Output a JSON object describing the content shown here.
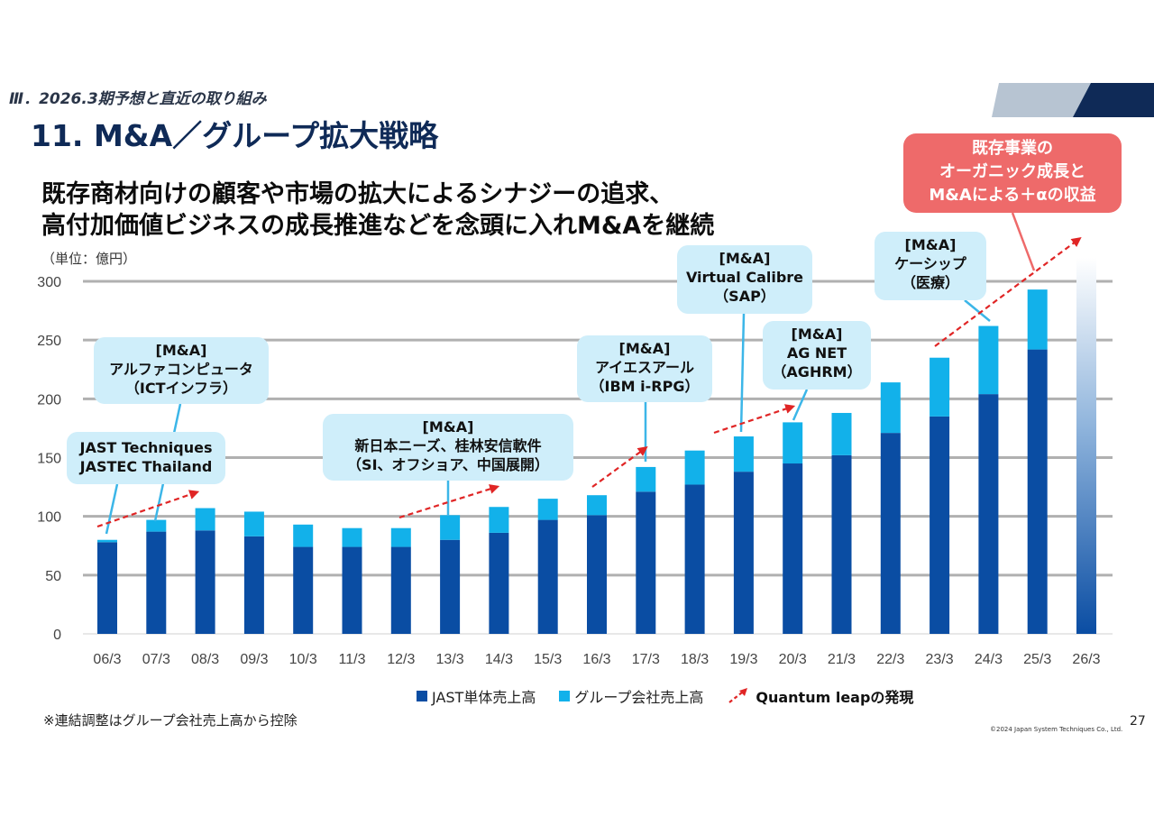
{
  "header": {
    "section": "Ⅲ．2026.3期予想と直近の取り組み",
    "title": "11. M&A／グループ拡大戦略",
    "headline_1": "既存商材向けの顧客や市場の拡大によるシナジーの追求、",
    "headline_2": "高付加価値ビジネスの成長推進などを念頭に入れM&Aを継続"
  },
  "colors": {
    "title": "#0f2a57",
    "jast": "#0a4da3",
    "group": "#12b1ea",
    "callout": "#cfeefa",
    "organic_box": "#ee6a6a",
    "arrow": "#e02525",
    "grid": "#b0b0b0"
  },
  "callouts": {
    "jt": "JAST Techniques\nJASTEC Thailand",
    "alpha": "[M&A]\nアルファコンピュータ\n（ICTインフラ）",
    "shin": "[M&A]\n新日本ニーズ、桂林安信軟件\n（SI、オフショア、中国展開）",
    "ies": "[M&A]\nアイエスアール\n（IBM i-RPG）",
    "vc": "[M&A]\nVirtual Calibre\n（SAP）",
    "ag": "[M&A]\nAG NET\n（AGHRM）",
    "kc": "[M&A]\nケーシップ\n（医療）",
    "organic": "既存事業の\nオーガニック成長と\nM&Aによる＋αの収益"
  },
  "chart_data": {
    "type": "bar",
    "stacked": true,
    "unit_label": "（単位：億円）",
    "categories": [
      "06/3",
      "07/3",
      "08/3",
      "09/3",
      "10/3",
      "11/3",
      "12/3",
      "13/3",
      "14/3",
      "15/3",
      "16/3",
      "17/3",
      "18/3",
      "19/3",
      "20/3",
      "21/3",
      "22/3",
      "23/3",
      "24/3",
      "25/3",
      "26/3"
    ],
    "series": [
      {
        "name": "JAST単体売上高",
        "values": [
          78,
          87,
          88,
          83,
          74,
          74,
          74,
          80,
          86,
          97,
          101,
          121,
          127,
          138,
          145,
          152,
          171,
          185,
          204,
          242,
          null
        ]
      },
      {
        "name": "グループ会社売上高",
        "values": [
          2,
          10,
          19,
          21,
          19,
          16,
          16,
          21,
          22,
          18,
          17,
          21,
          29,
          30,
          35,
          36,
          43,
          50,
          58,
          51,
          null
        ]
      }
    ],
    "forecast_category": "26/3",
    "forecast_total_approx": 320,
    "ylim": [
      0,
      300
    ],
    "yticks": [
      0,
      50,
      100,
      150,
      200,
      250,
      300
    ],
    "grid": true,
    "legend": {
      "position": "bottom",
      "items": [
        "JAST単体売上高",
        "グループ会社売上高",
        "Quantum leapの発現"
      ]
    }
  },
  "footer": {
    "note": "※連結調整はグループ会社売上高から控除",
    "copyright": "©2024 Japan System Techniques Co., Ltd.",
    "page": "27"
  }
}
